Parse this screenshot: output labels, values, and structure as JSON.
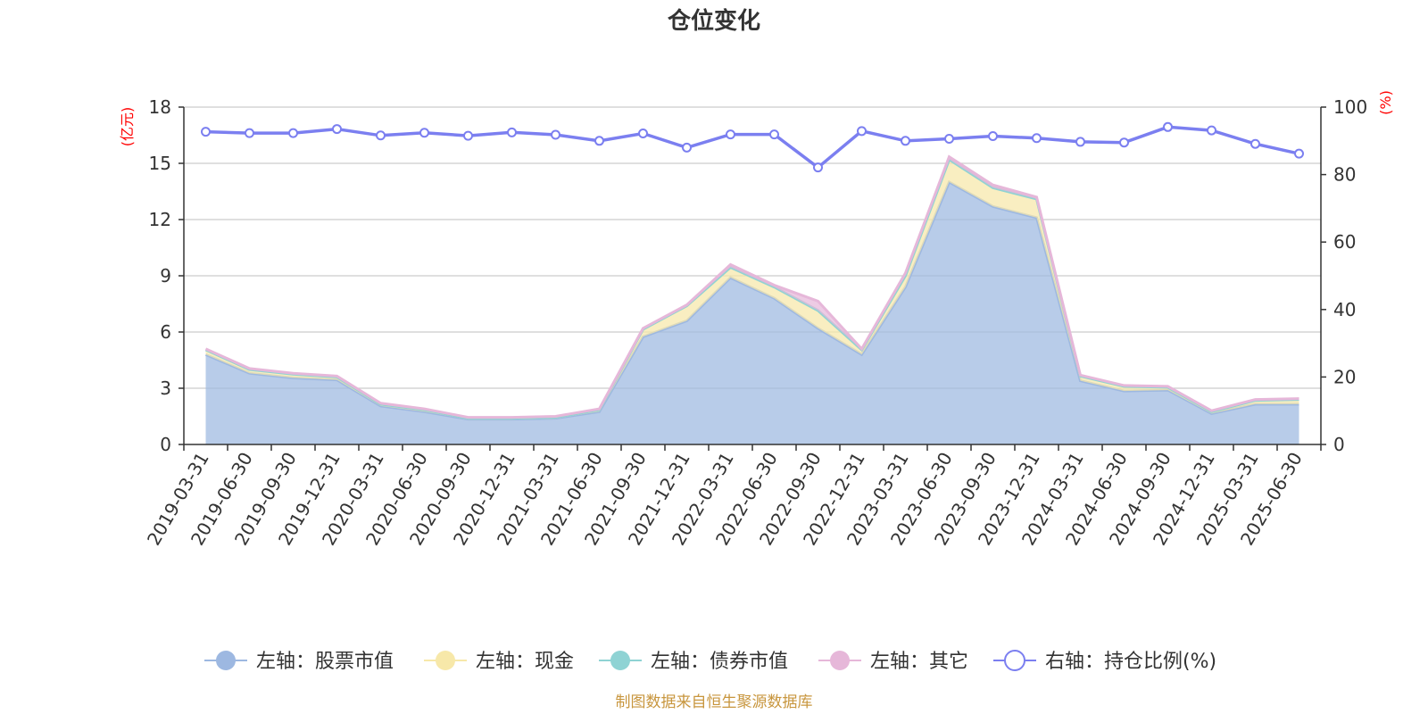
{
  "chart_data": {
    "type": "area",
    "title": "仓位变化",
    "source_note": "制图数据来自恒生聚源数据库",
    "left_axis": {
      "unit": "(亿元)",
      "min": 0,
      "max": 18,
      "ticks": [
        "0",
        "3",
        "6",
        "9",
        "12",
        "15",
        "18"
      ]
    },
    "right_axis": {
      "unit": "(%)",
      "min": 0,
      "max": 100,
      "ticks": [
        "0",
        "20",
        "40",
        "60",
        "80",
        "100"
      ]
    },
    "grid": true,
    "legend_position": "bottom",
    "categories": [
      "2019-03-31",
      "2019-06-30",
      "2019-09-30",
      "2019-12-31",
      "2020-03-31",
      "2020-06-30",
      "2020-09-30",
      "2020-12-31",
      "2021-03-31",
      "2021-06-30",
      "2021-09-30",
      "2021-12-31",
      "2022-03-31",
      "2022-06-30",
      "2022-09-30",
      "2022-12-31",
      "2023-03-31",
      "2023-06-30",
      "2023-09-30",
      "2023-12-31",
      "2024-03-31",
      "2024-06-30",
      "2024-09-30",
      "2024-12-31",
      "2025-03-31",
      "2025-06-30"
    ],
    "series": [
      {
        "name": "左轴：股票市值",
        "axis": "left",
        "stacked": true,
        "color": "#9db8e1",
        "values": [
          4.8,
          3.8,
          3.55,
          3.45,
          2.05,
          1.75,
          1.35,
          1.35,
          1.4,
          1.75,
          5.75,
          6.6,
          8.9,
          7.8,
          6.2,
          4.8,
          8.4,
          14.0,
          12.7,
          12.1,
          3.4,
          2.85,
          2.9,
          1.65,
          2.15,
          2.15
        ]
      },
      {
        "name": "左轴：现金",
        "axis": "left",
        "stacked": true,
        "color": "#f7e8a9",
        "values": [
          0.25,
          0.2,
          0.2,
          0.15,
          0.1,
          0.1,
          0.05,
          0.05,
          0.05,
          0.1,
          0.4,
          0.8,
          0.55,
          0.6,
          0.95,
          0.25,
          0.6,
          1.2,
          1.0,
          1.0,
          0.25,
          0.25,
          0.15,
          0.1,
          0.2,
          0.25
        ]
      },
      {
        "name": "左轴：债券市值",
        "axis": "left",
        "stacked": true,
        "color": "#8fd3d4",
        "values": [
          0,
          0,
          0,
          0,
          0,
          0,
          0,
          0,
          0,
          0,
          0,
          0,
          0,
          0,
          0,
          0,
          0,
          0,
          0,
          0,
          0,
          0,
          0,
          0,
          0,
          0
        ]
      },
      {
        "name": "左轴：其它",
        "axis": "left",
        "stacked": true,
        "color": "#e6b7d9",
        "values": [
          0.05,
          0.05,
          0.05,
          0.05,
          0.05,
          0.05,
          0.05,
          0.05,
          0.05,
          0.05,
          0.05,
          0.05,
          0.15,
          0.1,
          0.5,
          0.05,
          0.15,
          0.15,
          0.15,
          0.1,
          0.05,
          0.05,
          0.05,
          0.05,
          0.05,
          0.05
        ]
      },
      {
        "name": "右轴：持仓比例(%)",
        "axis": "right",
        "stacked": false,
        "color": "#7b7ff0",
        "values": [
          92.7,
          92.3,
          92.3,
          93.5,
          91.6,
          92.4,
          91.5,
          92.5,
          91.8,
          90.0,
          92.2,
          88.0,
          91.9,
          91.9,
          82.1,
          92.9,
          90.0,
          90.6,
          91.4,
          90.8,
          89.7,
          89.5,
          94.1,
          93.1,
          89.1,
          86.2
        ]
      }
    ]
  }
}
